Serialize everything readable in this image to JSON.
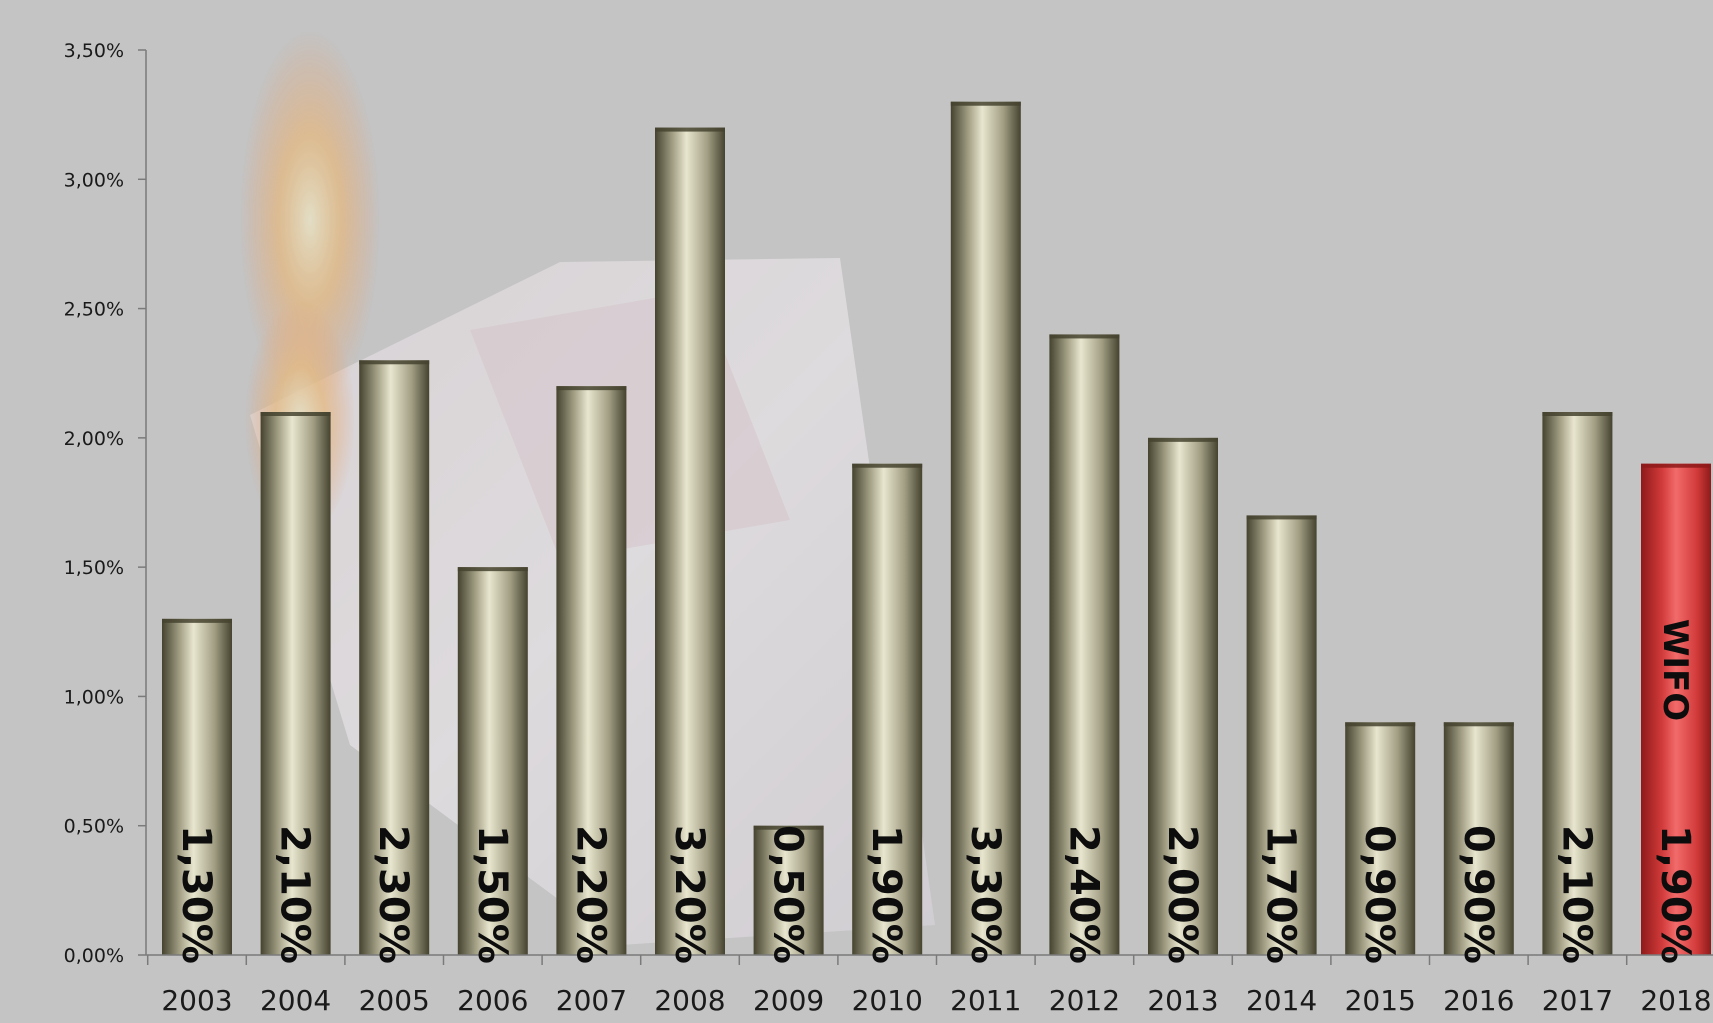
{
  "chart_data": {
    "type": "bar",
    "categories": [
      "2003",
      "2004",
      "2005",
      "2006",
      "2007",
      "2008",
      "2009",
      "2010",
      "2011",
      "2012",
      "2013",
      "2014",
      "2015",
      "2016",
      "2017",
      "2018"
    ],
    "values": [
      1.3,
      2.1,
      2.3,
      1.5,
      2.2,
      3.2,
      0.5,
      1.9,
      3.3,
      2.4,
      2.0,
      1.7,
      0.9,
      0.9,
      2.1,
      1.9
    ],
    "data_labels": [
      "1,30%",
      "2,10%",
      "2,30%",
      "1,50%",
      "2,20%",
      "3,20%",
      "0,50%",
      "1,90%",
      "3,30%",
      "2,40%",
      "2,00%",
      "1,70%",
      "0,90%",
      "0,90%",
      "2,10%",
      "1,90%"
    ],
    "y_ticks": [
      "0,00%",
      "0,50%",
      "1,00%",
      "1,50%",
      "2,00%",
      "2,50%",
      "3,00%",
      "3,50%"
    ],
    "ylim": [
      0,
      3.5
    ],
    "grid": false,
    "legend": "none",
    "highlight": {
      "category": "2018",
      "annotation": "WIFO"
    },
    "colors": {
      "bar_dark": "#45432f",
      "bar_light": "#e9e6cf",
      "bar_mid": "#a19e84",
      "highlight_dark": "#8e1a1a",
      "highlight_light": "#f26b6b",
      "highlight_mid": "#d23a3a",
      "background": "#c4c4c4",
      "axis": "#7a7a7a"
    }
  }
}
